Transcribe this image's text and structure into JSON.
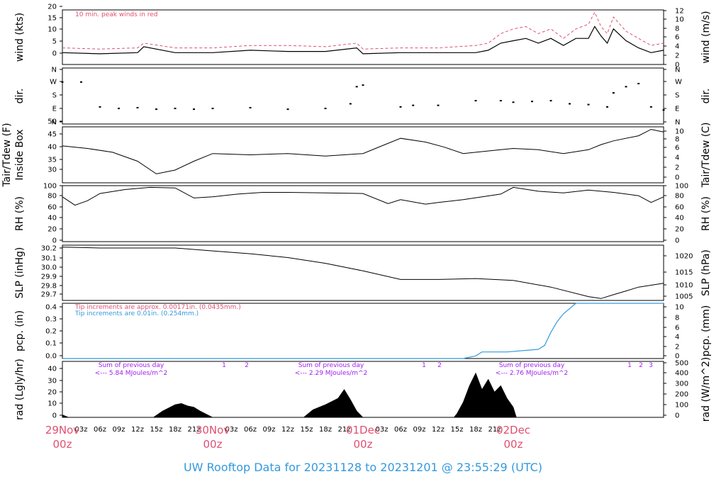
{
  "title": "UW Rooftop Data for 20231128  to  20231201 @ 23:55:29  (UTC)",
  "x_axis": {
    "days": [
      {
        "day": "29Nov",
        "hour": "00z"
      },
      {
        "day": "30Nov",
        "hour": "00z"
      },
      {
        "day": "01Dec",
        "hour": "00z"
      },
      {
        "day": "02Dec",
        "hour": "00z"
      }
    ],
    "hour_ticks": [
      "03z",
      "06z",
      "09z",
      "12z",
      "15z",
      "18z",
      "21z"
    ]
  },
  "panels": {
    "wind": {
      "left_label": "wind (kts)",
      "right_label": "wind (m/s)",
      "left_ticks": [
        "0",
        "5",
        "10",
        "15",
        "20"
      ],
      "right_ticks": [
        "0",
        "2",
        "4",
        "6",
        "8",
        "10",
        "12"
      ],
      "note": "10 min. peak winds in red",
      "note_color": "#e05070"
    },
    "dir": {
      "left_label": "dir.",
      "right_label": "dir.",
      "left_ticks": [
        "N",
        "E",
        "S",
        "W",
        "N"
      ],
      "right_ticks": [
        "N",
        "E",
        "S",
        "W",
        "N"
      ]
    },
    "temp": {
      "left_label_1": "Tair/Tdew (F)",
      "left_label_2": "Inside Box",
      "right_label": "Tair/Tdew (C)",
      "left_ticks": [
        "30",
        "35",
        "40",
        "45",
        "50"
      ],
      "right_ticks": [
        "0",
        "2",
        "4",
        "6",
        "8",
        "10"
      ]
    },
    "rh": {
      "left_label": "RH (%)",
      "right_label": "RH (%)",
      "left_ticks": [
        "0",
        "20",
        "40",
        "60",
        "80",
        "100"
      ],
      "right_ticks": [
        "0",
        "20",
        "40",
        "60",
        "80",
        "100"
      ]
    },
    "slp": {
      "left_label": "SLP (inHg)",
      "right_label": "SLP (hPa)",
      "left_ticks": [
        "29.7",
        "29.8",
        "29.9",
        "30.0",
        "30.1",
        "30.2"
      ],
      "right_ticks": [
        "1005",
        "1010",
        "1015",
        "1020"
      ]
    },
    "pcp": {
      "left_label": "pcp. (in)",
      "right_label": "pcp. (mm)",
      "left_ticks": [
        "0.0",
        "0.1",
        "0.2",
        "0.3",
        "0.4"
      ],
      "right_ticks": [
        "0",
        "2",
        "4",
        "6",
        "8",
        "10"
      ],
      "note1": "Tip increments are approx. 0.00171in. (0.0435mm.)",
      "note1_color": "#e05070",
      "note2": "Tip increments are 0.01in. (0.254mm.)",
      "note2_color": "#3399dd"
    },
    "rad": {
      "left_label": "rad (Lgly/hr)",
      "right_label": "rad (W/m^2)",
      "left_ticks": [
        "0",
        "10",
        "20",
        "30",
        "40"
      ],
      "right_ticks": [
        "0",
        "100",
        "200",
        "300",
        "400",
        "500"
      ],
      "sums": [
        {
          "line1": "Sum of previous day",
          "line2": "<--- 5.84 MJoules/m^2"
        },
        {
          "line1": "Sum of previous day",
          "line2": "<--- 2.29 MJoules/m^2"
        },
        {
          "line1": "Sum of previous day",
          "line2": "<--- 2.76 MJoules/m^2"
        }
      ],
      "markers": [
        [
          "1",
          "2"
        ],
        [
          "1",
          "2"
        ],
        [
          "1",
          "2",
          "3"
        ]
      ]
    }
  },
  "colors": {
    "red": "#e05070",
    "blue": "#3399dd",
    "purple": "#a020f0"
  },
  "chart_data": [
    {
      "type": "line",
      "panel": "wind",
      "ylabel": "wind (kts)",
      "ylim": [
        0,
        23
      ],
      "x_unit": "hours since 29Nov 00z",
      "series": [
        {
          "name": "wind",
          "x": [
            0,
            6,
            12,
            13,
            18,
            24,
            30,
            36,
            42,
            47,
            48,
            54,
            60,
            66,
            68,
            70,
            72,
            74,
            76,
            78,
            80,
            82,
            84,
            85,
            86,
            87,
            88,
            90,
            92,
            94,
            96
          ],
          "values": [
            5,
            4.5,
            5,
            7.5,
            5,
            5,
            6,
            5.5,
            5.5,
            7,
            4.5,
            5,
            5,
            5,
            6,
            9,
            10,
            11,
            9,
            11,
            8,
            11,
            11,
            16,
            12,
            9,
            15,
            10,
            7,
            5,
            6
          ]
        },
        {
          "name": "10 min. peak winds",
          "x": [
            0,
            6,
            12,
            13,
            18,
            24,
            30,
            36,
            42,
            47,
            48,
            54,
            60,
            66,
            68,
            70,
            72,
            74,
            76,
            78,
            80,
            82,
            84,
            85,
            86,
            87,
            88,
            90,
            92,
            94,
            96
          ],
          "values": [
            7,
            6.5,
            7,
            9,
            7,
            7,
            8,
            8,
            7.5,
            9,
            6.5,
            7,
            7,
            8,
            9,
            13,
            15,
            16,
            13,
            15,
            11,
            15,
            17,
            22,
            16,
            13,
            20,
            14,
            11,
            8,
            9
          ]
        }
      ]
    },
    {
      "type": "scatter",
      "panel": "dir",
      "ylabel": "dir.",
      "ylim": [
        0,
        360
      ],
      "series": [
        {
          "name": "dir",
          "x": [
            0,
            3,
            6,
            9,
            12,
            15,
            18,
            21,
            24,
            30,
            36,
            42,
            46,
            47,
            48,
            54,
            56,
            60,
            66,
            70,
            72,
            75,
            78,
            81,
            84,
            87,
            88,
            90,
            92,
            94,
            96
          ],
          "values": [
            270,
            270,
            110,
            100,
            105,
            95,
            100,
            95,
            100,
            105,
            95,
            100,
            130,
            240,
            250,
            110,
            120,
            120,
            150,
            150,
            140,
            145,
            150,
            130,
            125,
            110,
            200,
            240,
            260,
            110,
            90
          ]
        }
      ]
    },
    {
      "type": "line",
      "panel": "temp",
      "ylabel": "Tair/Tdew (F)",
      "ylim": [
        29,
        51
      ],
      "series": [
        {
          "name": "Tair",
          "x": [
            0,
            4,
            8,
            12,
            15,
            18,
            21,
            24,
            30,
            36,
            42,
            48,
            51,
            54,
            58,
            61,
            64,
            66,
            70,
            72,
            76,
            80,
            84,
            86,
            88,
            92,
            94,
            96
          ],
          "values": [
            43.5,
            42.5,
            41,
            37.5,
            32.5,
            34,
            37.5,
            40.5,
            40,
            40.5,
            39.5,
            40.5,
            43.5,
            46.5,
            45,
            43,
            40.5,
            41,
            42,
            42.5,
            42,
            40.5,
            42,
            44,
            45.5,
            47.5,
            50,
            49
          ]
        }
      ]
    },
    {
      "type": "line",
      "panel": "rh",
      "ylabel": "RH (%)",
      "ylim": [
        0,
        100
      ],
      "series": [
        {
          "name": "RH",
          "x": [
            0,
            2,
            4,
            6,
            10,
            14,
            18,
            21,
            24,
            28,
            32,
            36,
            42,
            48,
            52,
            54,
            58,
            60,
            64,
            70,
            72,
            76,
            80,
            84,
            88,
            92,
            94,
            96
          ],
          "values": [
            80,
            65,
            73,
            86,
            93,
            97,
            96,
            78,
            80,
            85,
            88,
            88,
            87,
            86,
            68,
            75,
            67,
            70,
            75,
            85,
            97,
            90,
            87,
            92,
            88,
            82,
            70,
            80
          ]
        }
      ]
    },
    {
      "type": "line",
      "panel": "slp",
      "ylabel": "SLP (inHg)",
      "ylim": [
        29.66,
        30.24
      ],
      "series": [
        {
          "name": "SLP",
          "x": [
            0,
            6,
            12,
            18,
            24,
            30,
            36,
            42,
            48,
            54,
            60,
            66,
            72,
            78,
            84,
            86,
            88,
            90,
            92,
            96
          ],
          "values": [
            30.22,
            30.21,
            30.21,
            30.21,
            30.18,
            30.15,
            30.11,
            30.05,
            29.97,
            29.88,
            29.88,
            29.89,
            29.87,
            29.8,
            29.7,
            29.68,
            29.72,
            29.76,
            29.8,
            29.84
          ]
        }
      ]
    },
    {
      "type": "line",
      "panel": "pcp",
      "ylabel": "pcp. (in)",
      "ylim": [
        0,
        0.42
      ],
      "series": [
        {
          "name": "pcp",
          "x": [
            0,
            64,
            66,
            67,
            71,
            76,
            77,
            78,
            79,
            80,
            81,
            82,
            96
          ],
          "values": [
            0,
            0,
            0.02,
            0.05,
            0.05,
            0.07,
            0.1,
            0.2,
            0.28,
            0.34,
            0.38,
            0.42,
            0.42
          ]
        }
      ]
    },
    {
      "type": "area",
      "panel": "rad",
      "ylabel": "rad (Lgly/hr)",
      "ylim": [
        0,
        44
      ],
      "series": [
        {
          "name": "rad",
          "x": [
            0,
            1,
            14.5,
            16,
            18,
            19,
            20,
            21,
            22,
            24,
            38.5,
            40,
            42,
            44,
            45,
            46,
            47,
            48,
            50,
            62,
            62.5,
            63,
            64,
            65,
            66,
            67,
            68,
            69,
            70,
            71,
            72,
            72.5,
            96
          ],
          "values": [
            2,
            0,
            0,
            5,
            10,
            11,
            9,
            8,
            5,
            0,
            0,
            6,
            10,
            15,
            22,
            14,
            5,
            0,
            0,
            0,
            0,
            3,
            12,
            25,
            35,
            22,
            30,
            20,
            25,
            15,
            8,
            0,
            0
          ]
        }
      ]
    }
  ]
}
